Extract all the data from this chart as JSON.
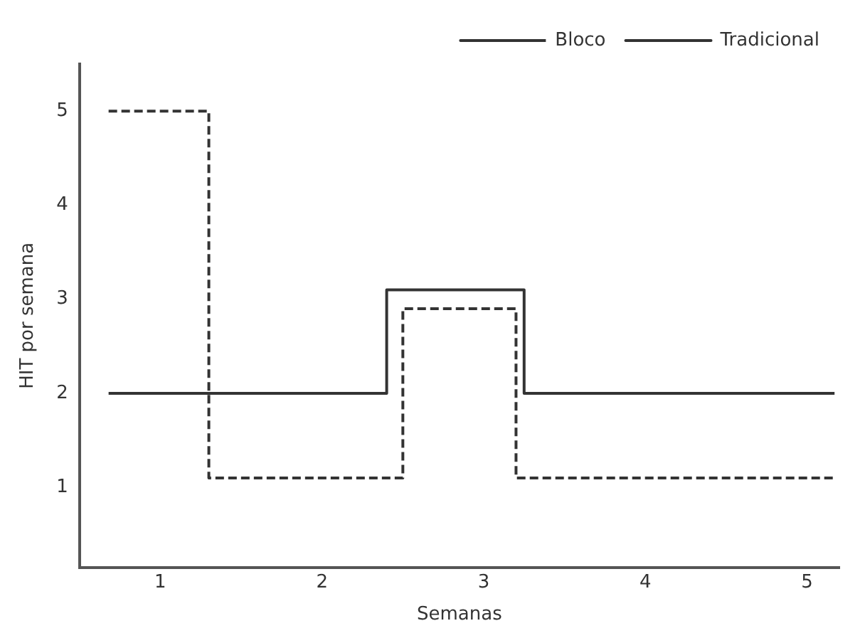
{
  "chart_data": {
    "type": "step",
    "xlabel": "Semanas",
    "ylabel": "HIT por semana",
    "xlim": [
      0.5,
      5.2
    ],
    "xticks": [
      1,
      2,
      3,
      4,
      5
    ],
    "ylim": [
      0.15,
      5.5
    ],
    "yticks": [
      1,
      2,
      3,
      4,
      5
    ],
    "grid": false,
    "legend": "top right",
    "marker": "none",
    "series": [
      {
        "name": "Bloco",
        "color": "#333333",
        "line_style": "dashed",
        "x": [
          0.68,
          1.3,
          2.5,
          3.2,
          5.17
        ],
        "values": [
          5,
          1.1,
          2.9,
          1.1,
          1.1
        ]
      },
      {
        "name": "Tradicional",
        "color": "#333333",
        "line_style": "solid",
        "x": [
          0.68,
          2.4,
          3.25,
          5.17
        ],
        "values": [
          2,
          3.1,
          2,
          2
        ]
      }
    ]
  }
}
